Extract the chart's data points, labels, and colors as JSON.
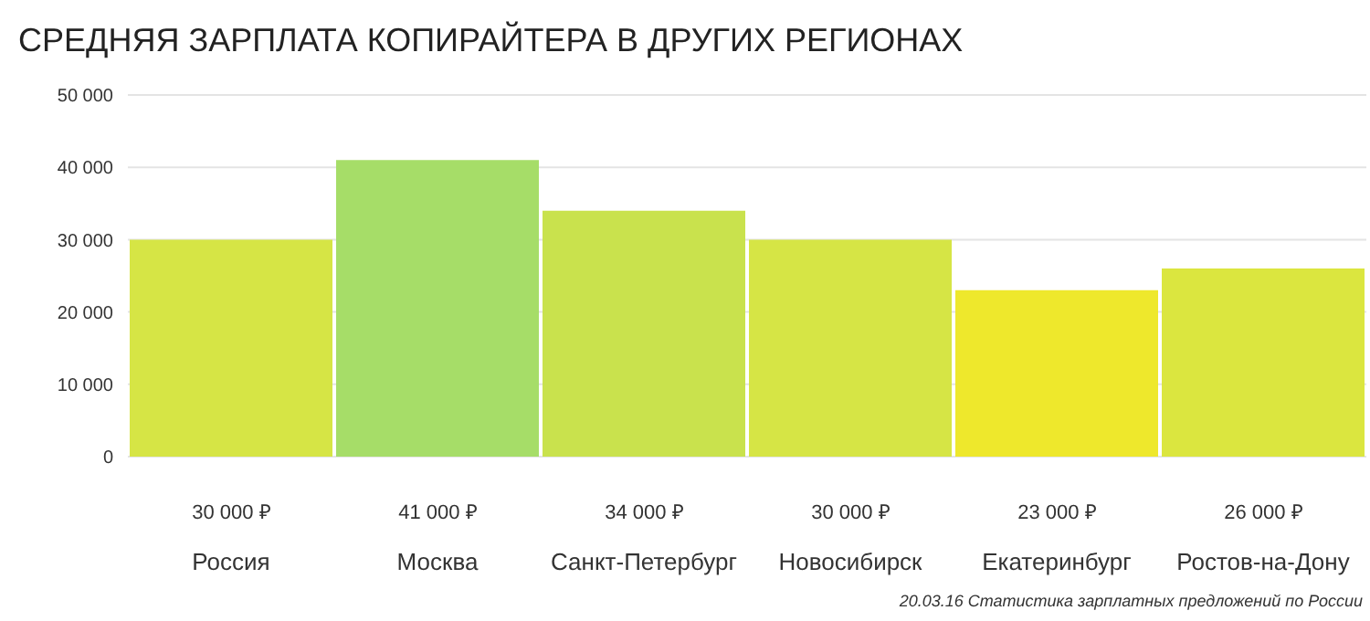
{
  "chart_data": {
    "type": "bar",
    "title": "СРЕДНЯЯ ЗАРПЛАТА КОПИРАЙТЕРА В ДРУГИХ РЕГИОНАХ",
    "categories": [
      "Россия",
      "Москва",
      "Санкт-Петербург",
      "Новосибирск",
      "Екатеринбург",
      "Ростов-на-Дону"
    ],
    "values": [
      30000,
      41000,
      34000,
      30000,
      23000,
      26000
    ],
    "colors": [
      "#d6e545",
      "#a6dd68",
      "#c9e24d",
      "#d6e545",
      "#eee82c",
      "#dbe63f"
    ],
    "value_labels": [
      "30 000 ₽",
      "41 000 ₽",
      "34 000 ₽",
      "30 000 ₽",
      "23 000 ₽",
      "26 000 ₽"
    ],
    "ylim": [
      0,
      50000
    ],
    "yticks": [
      {
        "value": 0,
        "label": "0"
      },
      {
        "value": 10000,
        "label": "10 000"
      },
      {
        "value": 20000,
        "label": "20 000"
      },
      {
        "value": 30000,
        "label": "30 000"
      },
      {
        "value": 40000,
        "label": "40 000"
      },
      {
        "value": 50000,
        "label": "50 000"
      }
    ],
    "grid": "y",
    "annotations": [
      "20.03.16 Статистика зарплатных предложений по России"
    ]
  }
}
